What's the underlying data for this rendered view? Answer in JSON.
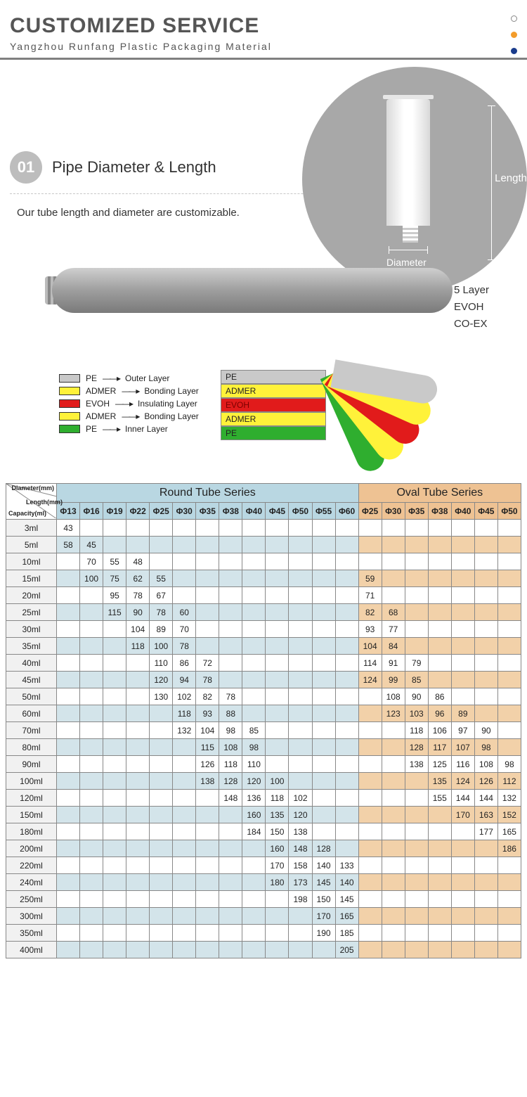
{
  "header": {
    "title": "CUSTOMIZED SERVICE",
    "subtitle": "Yangzhou Runfang Plastic Packaging Material",
    "dot_colors": [
      "#ffffff",
      "#f39c2b",
      "#1a3c8c"
    ],
    "dot_border": "#888888"
  },
  "section1": {
    "number": "01",
    "title": "Pipe Diameter & Length",
    "desc": "Our tube length and diameter are customizable.",
    "circle_color": "#a8a8a8",
    "length_label": "Length",
    "diameter_label": "Diameter"
  },
  "section2": {
    "right_labels": [
      "5 Layer",
      "EVOH",
      "CO-EX"
    ],
    "legend": [
      {
        "color": "#c9c9c9",
        "mat": "PE",
        "role": "Outer Layer"
      },
      {
        "color": "#fff23a",
        "mat": "ADMER",
        "role": "Bonding Layer"
      },
      {
        "color": "#e11b1b",
        "mat": "EVOH",
        "role": "Insulating Layer"
      },
      {
        "color": "#fff23a",
        "mat": "ADMER",
        "role": "Bonding Layer"
      },
      {
        "color": "#2fae2f",
        "mat": "PE",
        "role": "Inner Layer"
      }
    ],
    "stack_labels": [
      "PE",
      "ADMER",
      "EVOH",
      "ADMER",
      "PE"
    ],
    "stack_colors": [
      "#c9c9c9",
      "#fff23a",
      "#e11b1b",
      "#fff23a",
      "#2fae2f"
    ]
  },
  "table": {
    "header_round": "Round Tube Series",
    "header_oval": "Oval Tube Series",
    "corner_labels": {
      "a": "Diameter(mm)",
      "b": "Length(mm)",
      "c": "Capacity(ml)"
    },
    "round_cols": [
      "Φ13",
      "Φ16",
      "Φ19",
      "Φ22",
      "Φ25",
      "Φ30",
      "Φ35",
      "Φ38",
      "Φ40",
      "Φ45",
      "Φ50",
      "Φ55",
      "Φ60"
    ],
    "oval_cols": [
      "Φ25",
      "Φ30",
      "Φ35",
      "Φ38",
      "Φ40",
      "Φ45",
      "Φ50"
    ],
    "row_color_alt_blue": "#d3e4ea",
    "row_color_alt_orange": "#f2d1a9",
    "header_round_bg": "#b9d7e2",
    "header_oval_bg": "#eec293",
    "rows": [
      {
        "cap": "3ml",
        "alt": true,
        "r": [
          43,
          "",
          "",
          "",
          "",
          "",
          "",
          "",
          "",
          "",
          "",
          "",
          ""
        ],
        "o": [
          "",
          "",
          "",
          "",
          "",
          "",
          ""
        ]
      },
      {
        "cap": "5ml",
        "alt": false,
        "r": [
          58,
          45,
          "",
          "",
          "",
          "",
          "",
          "",
          "",
          "",
          "",
          "",
          ""
        ],
        "o": [
          "",
          "",
          "",
          "",
          "",
          "",
          ""
        ]
      },
      {
        "cap": "10ml",
        "alt": true,
        "r": [
          "",
          70,
          55,
          48,
          "",
          "",
          "",
          "",
          "",
          "",
          "",
          "",
          ""
        ],
        "o": [
          "",
          "",
          "",
          "",
          "",
          "",
          ""
        ]
      },
      {
        "cap": "15ml",
        "alt": false,
        "r": [
          "",
          100,
          75,
          62,
          55,
          "",
          "",
          "",
          "",
          "",
          "",
          "",
          ""
        ],
        "o": [
          59,
          "",
          "",
          "",
          "",
          "",
          ""
        ]
      },
      {
        "cap": "20ml",
        "alt": true,
        "r": [
          "",
          "",
          95,
          78,
          67,
          "",
          "",
          "",
          "",
          "",
          "",
          "",
          ""
        ],
        "o": [
          71,
          "",
          "",
          "",
          "",
          "",
          ""
        ]
      },
      {
        "cap": "25ml",
        "alt": false,
        "r": [
          "",
          "",
          115,
          90,
          78,
          60,
          "",
          "",
          "",
          "",
          "",
          "",
          ""
        ],
        "o": [
          82,
          68,
          "",
          "",
          "",
          "",
          ""
        ]
      },
      {
        "cap": "30ml",
        "alt": true,
        "r": [
          "",
          "",
          "",
          104,
          89,
          70,
          "",
          "",
          "",
          "",
          "",
          "",
          ""
        ],
        "o": [
          93,
          77,
          "",
          "",
          "",
          "",
          ""
        ]
      },
      {
        "cap": "35ml",
        "alt": false,
        "r": [
          "",
          "",
          "",
          118,
          100,
          78,
          "",
          "",
          "",
          "",
          "",
          "",
          ""
        ],
        "o": [
          104,
          84,
          "",
          "",
          "",
          "",
          ""
        ]
      },
      {
        "cap": "40ml",
        "alt": true,
        "r": [
          "",
          "",
          "",
          "",
          110,
          86,
          72,
          "",
          "",
          "",
          "",
          "",
          ""
        ],
        "o": [
          114,
          91,
          79,
          "",
          "",
          "",
          ""
        ]
      },
      {
        "cap": "45ml",
        "alt": false,
        "r": [
          "",
          "",
          "",
          "",
          120,
          94,
          78,
          "",
          "",
          "",
          "",
          "",
          ""
        ],
        "o": [
          124,
          99,
          85,
          "",
          "",
          "",
          ""
        ]
      },
      {
        "cap": "50ml",
        "alt": true,
        "r": [
          "",
          "",
          "",
          "",
          130,
          102,
          82,
          78,
          "",
          "",
          "",
          "",
          ""
        ],
        "o": [
          "",
          108,
          90,
          86,
          "",
          "",
          ""
        ]
      },
      {
        "cap": "60ml",
        "alt": false,
        "r": [
          "",
          "",
          "",
          "",
          "",
          118,
          93,
          88,
          "",
          "",
          "",
          "",
          ""
        ],
        "o": [
          "",
          123,
          103,
          96,
          89,
          "",
          ""
        ]
      },
      {
        "cap": "70ml",
        "alt": true,
        "r": [
          "",
          "",
          "",
          "",
          "",
          132,
          104,
          98,
          85,
          "",
          "",
          "",
          ""
        ],
        "o": [
          "",
          "",
          118,
          106,
          97,
          90,
          ""
        ]
      },
      {
        "cap": "80ml",
        "alt": false,
        "r": [
          "",
          "",
          "",
          "",
          "",
          "",
          115,
          108,
          98,
          "",
          "",
          "",
          ""
        ],
        "o": [
          "",
          "",
          128,
          117,
          107,
          98,
          ""
        ]
      },
      {
        "cap": "90ml",
        "alt": true,
        "r": [
          "",
          "",
          "",
          "",
          "",
          "",
          126,
          118,
          110,
          "",
          "",
          "",
          ""
        ],
        "o": [
          "",
          "",
          138,
          125,
          116,
          108,
          98
        ]
      },
      {
        "cap": "100ml",
        "alt": false,
        "r": [
          "",
          "",
          "",
          "",
          "",
          "",
          138,
          128,
          120,
          100,
          "",
          "",
          ""
        ],
        "o": [
          "",
          "",
          "",
          135,
          124,
          126,
          112
        ]
      },
      {
        "cap": "120ml",
        "alt": true,
        "r": [
          "",
          "",
          "",
          "",
          "",
          "",
          "",
          148,
          136,
          118,
          102,
          "",
          ""
        ],
        "o": [
          "",
          "",
          "",
          155,
          144,
          144,
          132
        ]
      },
      {
        "cap": "150ml",
        "alt": false,
        "r": [
          "",
          "",
          "",
          "",
          "",
          "",
          "",
          "",
          160,
          135,
          120,
          "",
          ""
        ],
        "o": [
          "",
          "",
          "",
          "",
          170,
          163,
          152
        ]
      },
      {
        "cap": "180ml",
        "alt": true,
        "r": [
          "",
          "",
          "",
          "",
          "",
          "",
          "",
          "",
          184,
          150,
          138,
          "",
          ""
        ],
        "o": [
          "",
          "",
          "",
          "",
          "",
          177,
          165
        ]
      },
      {
        "cap": "200ml",
        "alt": false,
        "r": [
          "",
          "",
          "",
          "",
          "",
          "",
          "",
          "",
          "",
          160,
          148,
          128,
          ""
        ],
        "o": [
          "",
          "",
          "",
          "",
          "",
          "",
          186
        ]
      },
      {
        "cap": "220ml",
        "alt": true,
        "r": [
          "",
          "",
          "",
          "",
          "",
          "",
          "",
          "",
          "",
          170,
          158,
          140,
          133
        ],
        "o": [
          "",
          "",
          "",
          "",
          "",
          "",
          ""
        ]
      },
      {
        "cap": "240ml",
        "alt": false,
        "r": [
          "",
          "",
          "",
          "",
          "",
          "",
          "",
          "",
          "",
          180,
          173,
          145,
          140
        ],
        "o": [
          "",
          "",
          "",
          "",
          "",
          "",
          ""
        ]
      },
      {
        "cap": "250ml",
        "alt": true,
        "r": [
          "",
          "",
          "",
          "",
          "",
          "",
          "",
          "",
          "",
          "",
          198,
          150,
          145
        ],
        "o": [
          "",
          "",
          "",
          "",
          "",
          "",
          ""
        ]
      },
      {
        "cap": "300ml",
        "alt": false,
        "r": [
          "",
          "",
          "",
          "",
          "",
          "",
          "",
          "",
          "",
          "",
          "",
          170,
          165
        ],
        "o": [
          "",
          "",
          "",
          "",
          "",
          "",
          ""
        ]
      },
      {
        "cap": "350ml",
        "alt": true,
        "r": [
          "",
          "",
          "",
          "",
          "",
          "",
          "",
          "",
          "",
          "",
          "",
          190,
          185
        ],
        "o": [
          "",
          "",
          "",
          "",
          "",
          "",
          ""
        ]
      },
      {
        "cap": "400ml",
        "alt": false,
        "r": [
          "",
          "",
          "",
          "",
          "",
          "",
          "",
          "",
          "",
          "",
          "",
          "",
          205
        ],
        "o": [
          "",
          "",
          "",
          "",
          "",
          "",
          ""
        ]
      }
    ]
  }
}
